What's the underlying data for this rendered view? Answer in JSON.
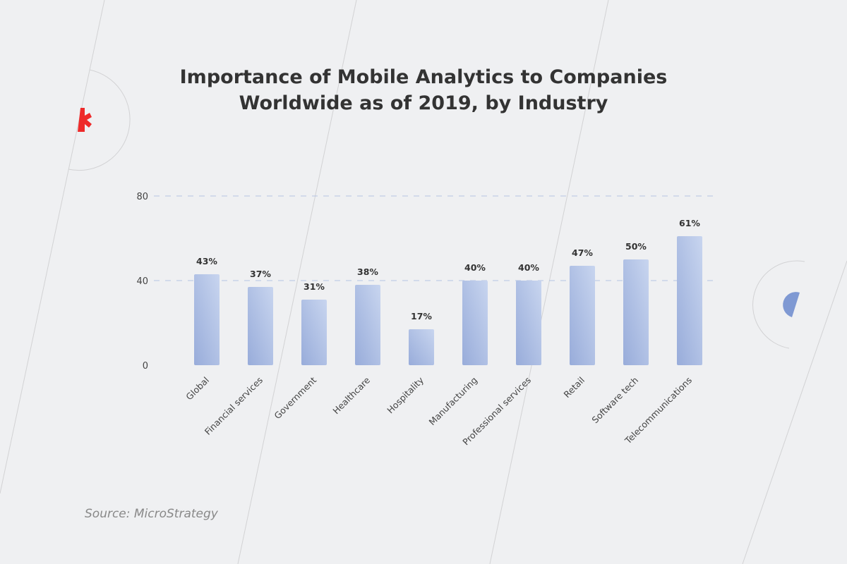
{
  "chart_data": {
    "type": "bar",
    "title_lines": [
      "Importance of Mobile Analytics to Companies",
      "Worldwide as of 2019, by Industry"
    ],
    "categories": [
      "Global",
      "Financial services",
      "Government",
      "Healthcare",
      "Hospitality",
      "Manufacturing",
      "Professional services",
      "Retail",
      "Software tech",
      "Telecommunications"
    ],
    "values": [
      43,
      37,
      31,
      38,
      17,
      40,
      40,
      47,
      50,
      61
    ],
    "value_labels": [
      "43%",
      "37%",
      "31%",
      "38%",
      "17%",
      "40%",
      "40%",
      "47%",
      "50%",
      "61%"
    ],
    "yticks": [
      "0",
      "40",
      "80"
    ],
    "ylim": [
      0,
      80
    ],
    "grid": "dashed horizontal at 40 and 80",
    "bar_colors": [
      "#c5d3ee",
      "#9aaedb"
    ],
    "source": "Source: MicroStrategy"
  },
  "decor": {
    "accent_red": "#ee2a2a",
    "accent_blue": "#7f99d3"
  }
}
